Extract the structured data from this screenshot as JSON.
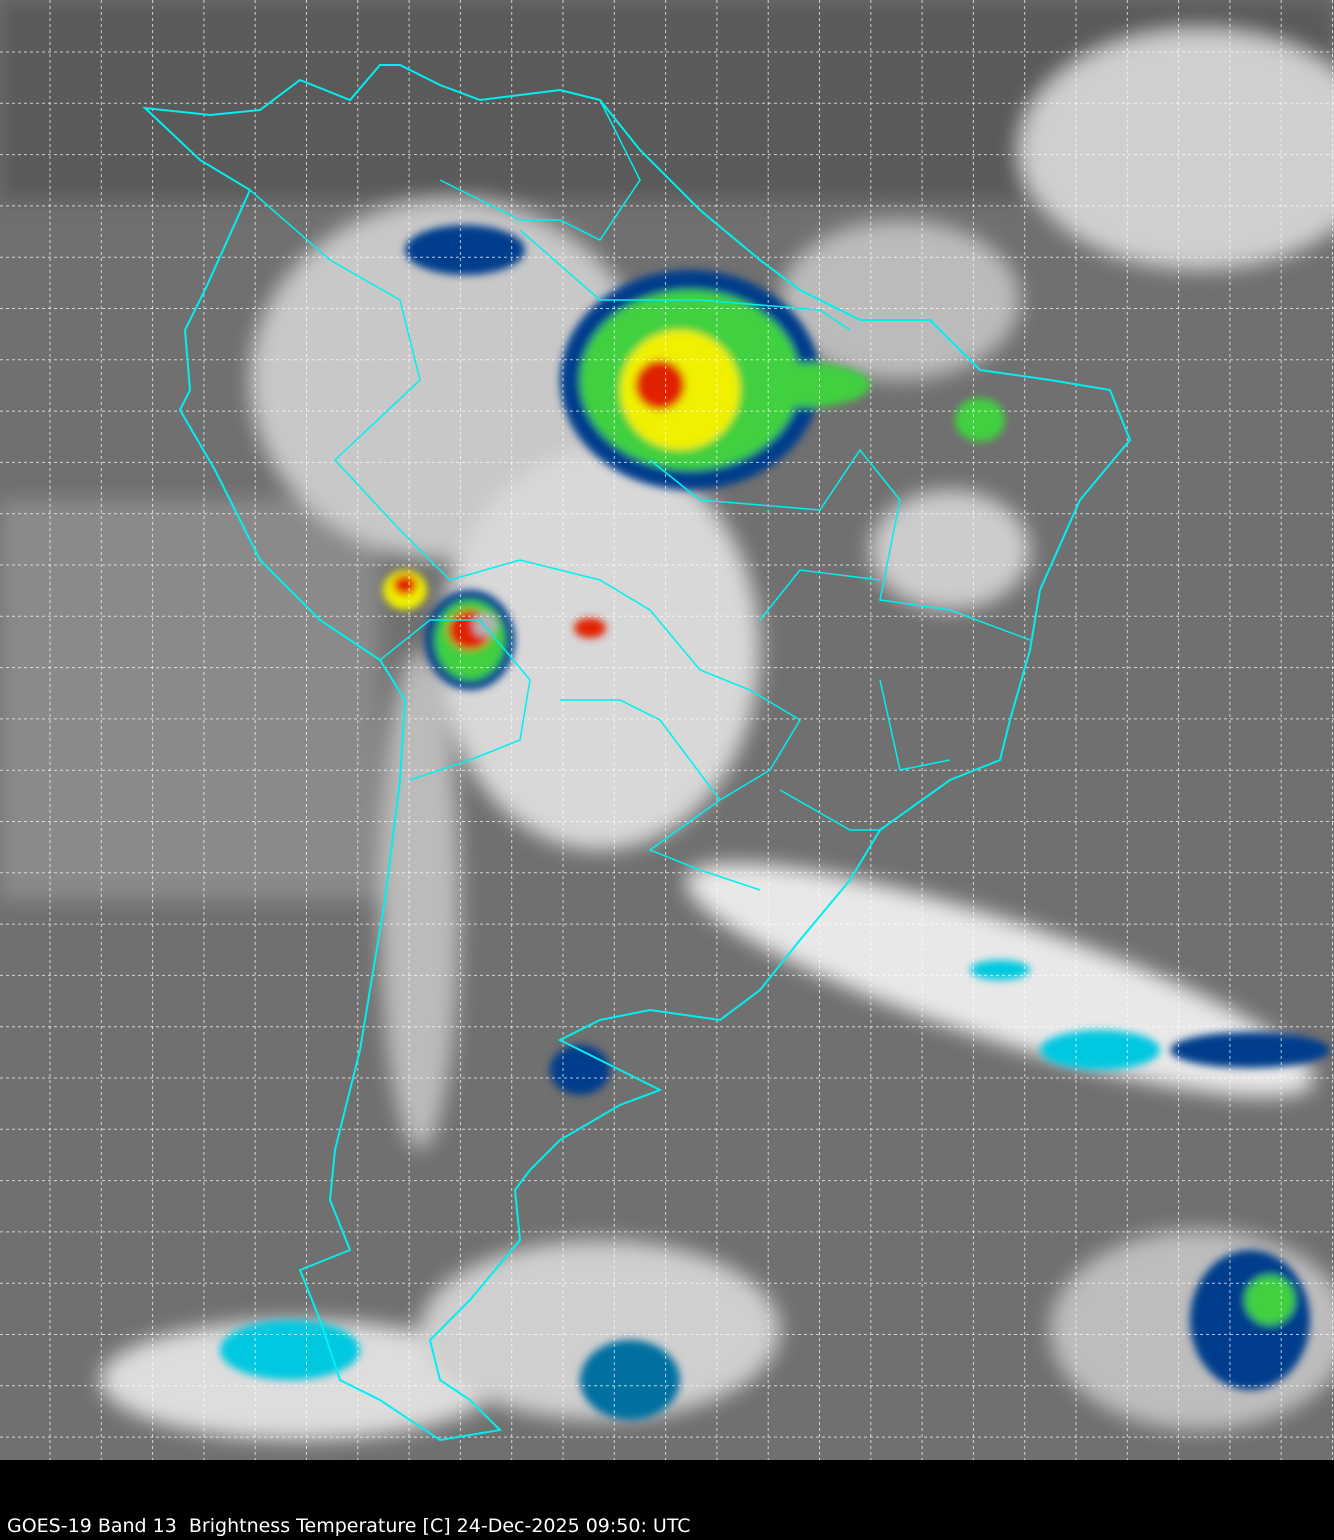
{
  "caption": "GOES-19 Band 13  Brightness Temperature [C] 24-Dec-2025 09:50: UTC",
  "map": {
    "satellite": "GOES-19",
    "band": "Band 13",
    "product": "Brightness Temperature [C]",
    "colors": {
      "coastline": "#00f0f0",
      "gridline": "#ffffff",
      "background_ir": "#6e6e6e",
      "cold_cloud_cyan": "#00c8e0",
      "cold_cloud_blue": "#003c8c",
      "cold_cloud_green": "#40d040",
      "cold_cloud_yellow": "#f0f000",
      "cold_cloud_red": "#e02000",
      "coldest": "#400000"
    }
  }
}
